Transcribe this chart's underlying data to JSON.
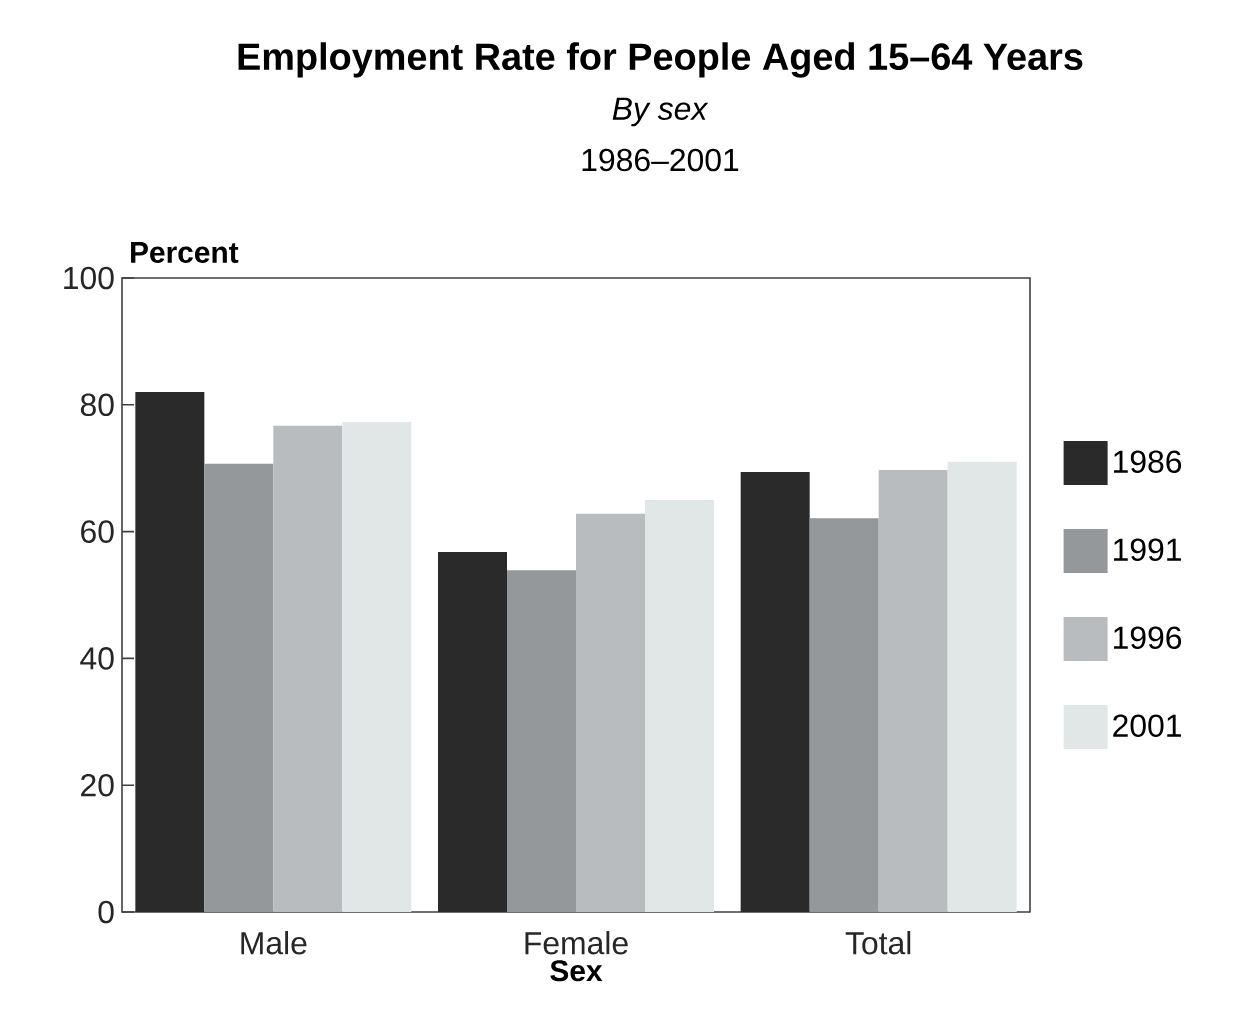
{
  "chart_data": {
    "type": "bar",
    "title": "Employment Rate for People Aged 15–64 Years",
    "subtitle": "*By sex*",
    "annotations": [
      "1986–2001"
    ],
    "xlabel": "Sex",
    "ylabel": "Percent",
    "categories": [
      "Male",
      "Female",
      "Total"
    ],
    "series": [
      {
        "name": "1986",
        "color": "#2b2a2b",
        "values": [
          82.0,
          56.8,
          69.4
        ]
      },
      {
        "name": "1991",
        "color": "#95989b",
        "values": [
          70.7,
          53.9,
          62.1
        ]
      },
      {
        "name": "1996",
        "color": "#b9bcbf",
        "values": [
          76.7,
          62.8,
          69.7
        ]
      },
      {
        "name": "2001",
        "color": "#e1e7e7",
        "values": [
          77.3,
          65.0,
          71.0
        ]
      }
    ],
    "ylim": [
      0,
      100
    ],
    "yticks": [
      0,
      20,
      40,
      60,
      80,
      100
    ],
    "grid": false,
    "legend": "right"
  }
}
